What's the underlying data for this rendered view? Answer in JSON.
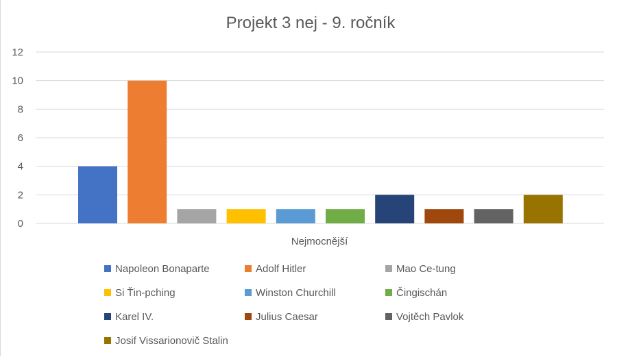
{
  "chart_data": {
    "type": "bar",
    "title": "Projekt 3 nej - 9. ročník",
    "xlabel": "Nejmocnější",
    "ylabel": "",
    "ylim": [
      0,
      12
    ],
    "yticks": [
      0,
      2,
      4,
      6,
      8,
      10,
      12
    ],
    "grid": true,
    "legend_position": "bottom",
    "series": [
      {
        "name": "Napoleon Bonaparte",
        "value": 4,
        "color": "#4472C4"
      },
      {
        "name": "Adolf Hitler",
        "value": 10,
        "color": "#ED7D31"
      },
      {
        "name": "Mao Ce-tung",
        "value": 1,
        "color": "#A5A5A5"
      },
      {
        "name": "Si Ťin-pching",
        "value": 1,
        "color": "#FFC000"
      },
      {
        "name": "Winston Churchill",
        "value": 1,
        "color": "#5B9BD5"
      },
      {
        "name": "Čingischán",
        "value": 1,
        "color": "#70AD47"
      },
      {
        "name": "Karel IV.",
        "value": 2,
        "color": "#264478"
      },
      {
        "name": "Julius Caesar",
        "value": 1,
        "color": "#9E480E"
      },
      {
        "name": "Vojtěch Pavlok",
        "value": 1,
        "color": "#636363"
      },
      {
        "name": "Josif Vissarionovič Stalin",
        "value": 2,
        "color": "#997300"
      }
    ]
  }
}
